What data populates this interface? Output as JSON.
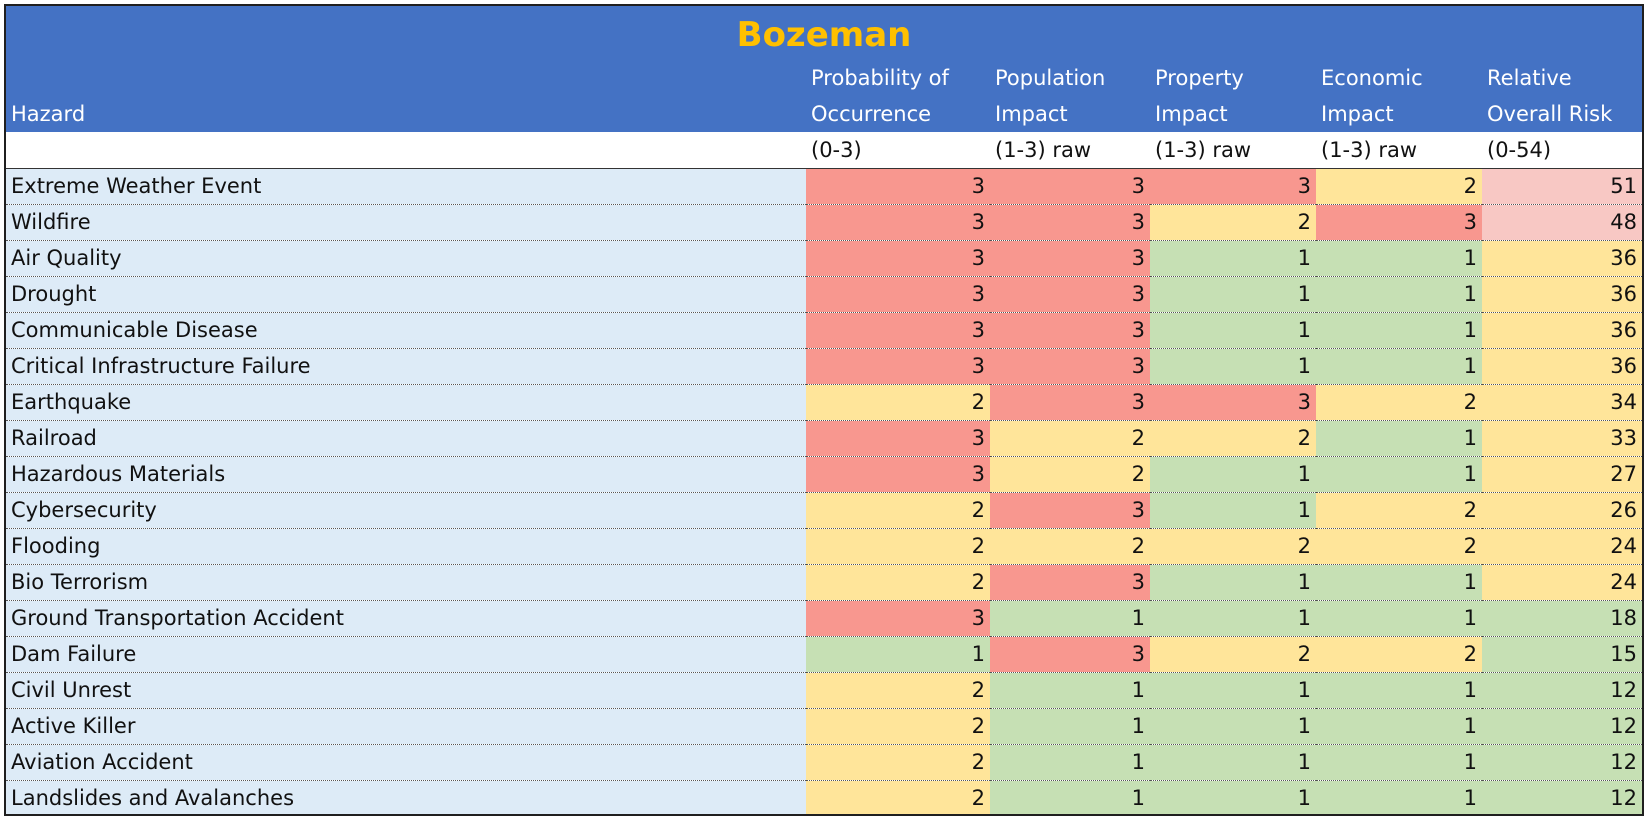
{
  "title": "Bozeman",
  "header": {
    "hazard_label": "Hazard",
    "columns": [
      {
        "line1": "Probability of",
        "line2": "Occurrence",
        "unit": "(0-3)"
      },
      {
        "line1": "Population",
        "line2": "Impact",
        "unit": "(1-3) raw"
      },
      {
        "line1": "Property",
        "line2": "Impact",
        "unit": "(1-3) raw"
      },
      {
        "line1": "Economic",
        "line2": "Impact",
        "unit": "(1-3) raw"
      },
      {
        "line1": "Relative",
        "line2": "Overall Risk",
        "unit": "(0-54)"
      }
    ]
  },
  "colors": {
    "header_bg": "#4472c4",
    "title_color": "#ffc000",
    "hazard_bg": "#ddebf7",
    "score_3": "#f8978f",
    "score_2": "#ffe59a",
    "score_1": "#c6e0b4",
    "overall_high": "#f8c8c4",
    "overall_mid": "#ffe59a",
    "overall_low": "#c6e0b4"
  },
  "rows": [
    {
      "hazard": "Extreme Weather Event",
      "probability": 3,
      "population": 3,
      "property": 3,
      "economic": 2,
      "overall": 51
    },
    {
      "hazard": "Wildfire",
      "probability": 3,
      "population": 3,
      "property": 2,
      "economic": 3,
      "overall": 48
    },
    {
      "hazard": "Air Quality",
      "probability": 3,
      "population": 3,
      "property": 1,
      "economic": 1,
      "overall": 36
    },
    {
      "hazard": "Drought",
      "probability": 3,
      "population": 3,
      "property": 1,
      "economic": 1,
      "overall": 36
    },
    {
      "hazard": "Communicable Disease",
      "probability": 3,
      "population": 3,
      "property": 1,
      "economic": 1,
      "overall": 36
    },
    {
      "hazard": "Critical Infrastructure Failure",
      "probability": 3,
      "population": 3,
      "property": 1,
      "economic": 1,
      "overall": 36
    },
    {
      "hazard": "Earthquake",
      "probability": 2,
      "population": 3,
      "property": 3,
      "economic": 2,
      "overall": 34
    },
    {
      "hazard": "Railroad",
      "probability": 3,
      "population": 2,
      "property": 2,
      "economic": 1,
      "overall": 33
    },
    {
      "hazard": "Hazardous Materials",
      "probability": 3,
      "population": 2,
      "property": 1,
      "economic": 1,
      "overall": 27
    },
    {
      "hazard": "Cybersecurity",
      "probability": 2,
      "population": 3,
      "property": 1,
      "economic": 2,
      "overall": 26
    },
    {
      "hazard": "Flooding",
      "probability": 2,
      "population": 2,
      "property": 2,
      "economic": 2,
      "overall": 24
    },
    {
      "hazard": "Bio Terrorism",
      "probability": 2,
      "population": 3,
      "property": 1,
      "economic": 1,
      "overall": 24
    },
    {
      "hazard": "Ground Transportation Accident",
      "probability": 3,
      "population": 1,
      "property": 1,
      "economic": 1,
      "overall": 18
    },
    {
      "hazard": "Dam Failure",
      "probability": 1,
      "population": 3,
      "property": 2,
      "economic": 2,
      "overall": 15
    },
    {
      "hazard": "Civil Unrest",
      "probability": 2,
      "population": 1,
      "property": 1,
      "economic": 1,
      "overall": 12
    },
    {
      "hazard": "Active Killer",
      "probability": 2,
      "population": 1,
      "property": 1,
      "economic": 1,
      "overall": 12
    },
    {
      "hazard": "Aviation Accident",
      "probability": 2,
      "population": 1,
      "property": 1,
      "economic": 1,
      "overall": 12
    },
    {
      "hazard": "Landslides and Avalanches",
      "probability": 2,
      "population": 1,
      "property": 1,
      "economic": 1,
      "overall": 12
    }
  ]
}
